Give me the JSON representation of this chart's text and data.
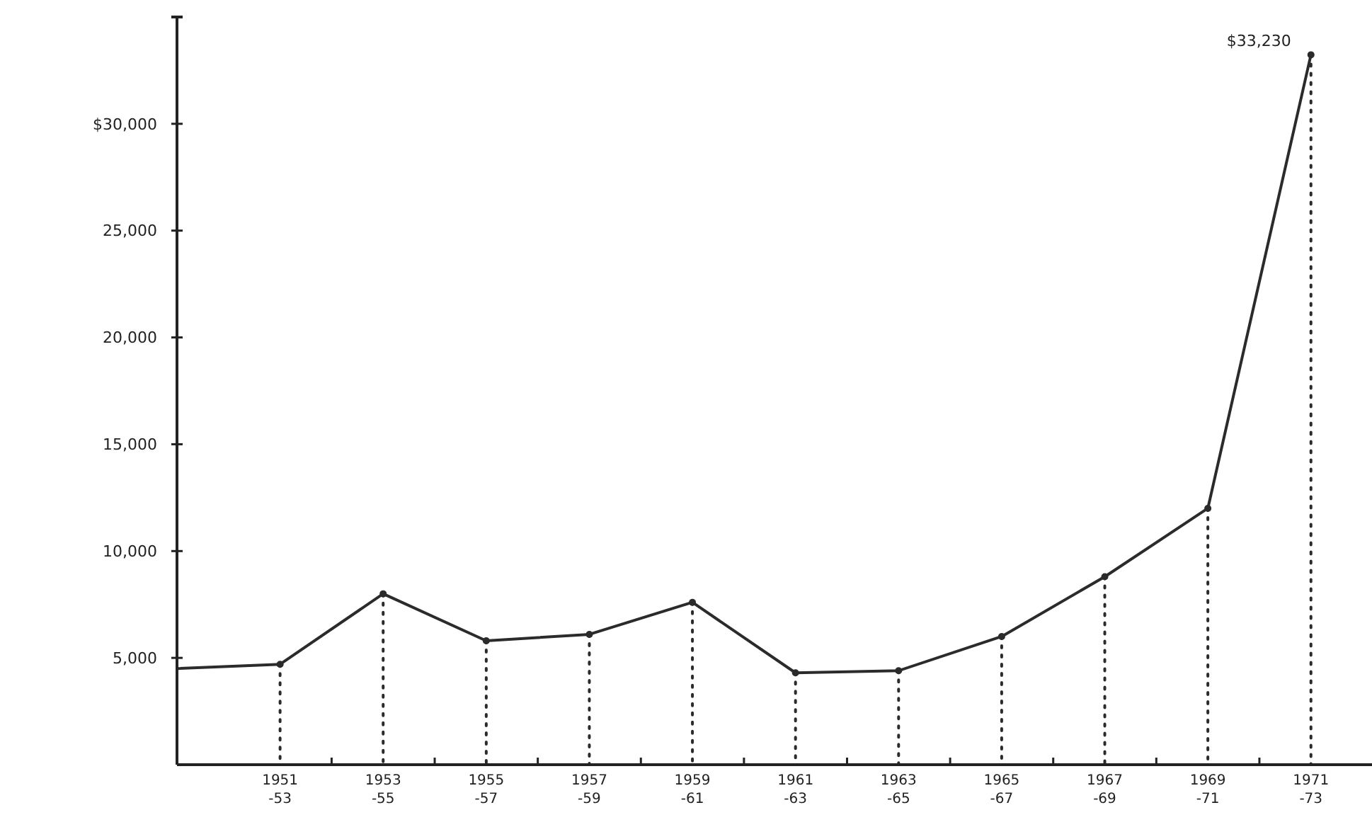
{
  "chart_data": {
    "type": "line",
    "categories": [
      null,
      "1951\n-53",
      "1953\n-55",
      "1955\n-57",
      "1957\n-59",
      "1959\n-61",
      "1961\n-63",
      "1963\n-65",
      "1965\n-67",
      "1967\n-69",
      "1969\n-71",
      "1971\n-73"
    ],
    "series": [
      {
        "color": "#2b2b2b",
        "marker": "none",
        "values": [
          4500,
          4700,
          8000,
          5800,
          6100,
          7600,
          4300,
          4400,
          6000,
          8800,
          12000,
          33230
        ]
      },
      {
        "type": "lollipop",
        "color": "#2b2b2b",
        "line_style": "dotted",
        "values": [
          null,
          4700,
          8000,
          5800,
          6100,
          7600,
          4300,
          4400,
          6000,
          8800,
          12000,
          33230
        ]
      }
    ],
    "ylim": [
      0,
      35000
    ],
    "yticks": [
      {
        "value": 5000,
        "label": "5,000"
      },
      {
        "value": 10000,
        "label": "10,000"
      },
      {
        "value": 15000,
        "label": "15,000"
      },
      {
        "value": 20000,
        "label": "20,000"
      },
      {
        "value": 25000,
        "label": "25,000"
      },
      {
        "value": 30000,
        "label": "$30,000"
      }
    ],
    "annotations": [
      {
        "text": "$33,230",
        "x": "1971\n-73",
        "y": 33230
      }
    ],
    "marker": "circle",
    "line_style": "solid"
  }
}
